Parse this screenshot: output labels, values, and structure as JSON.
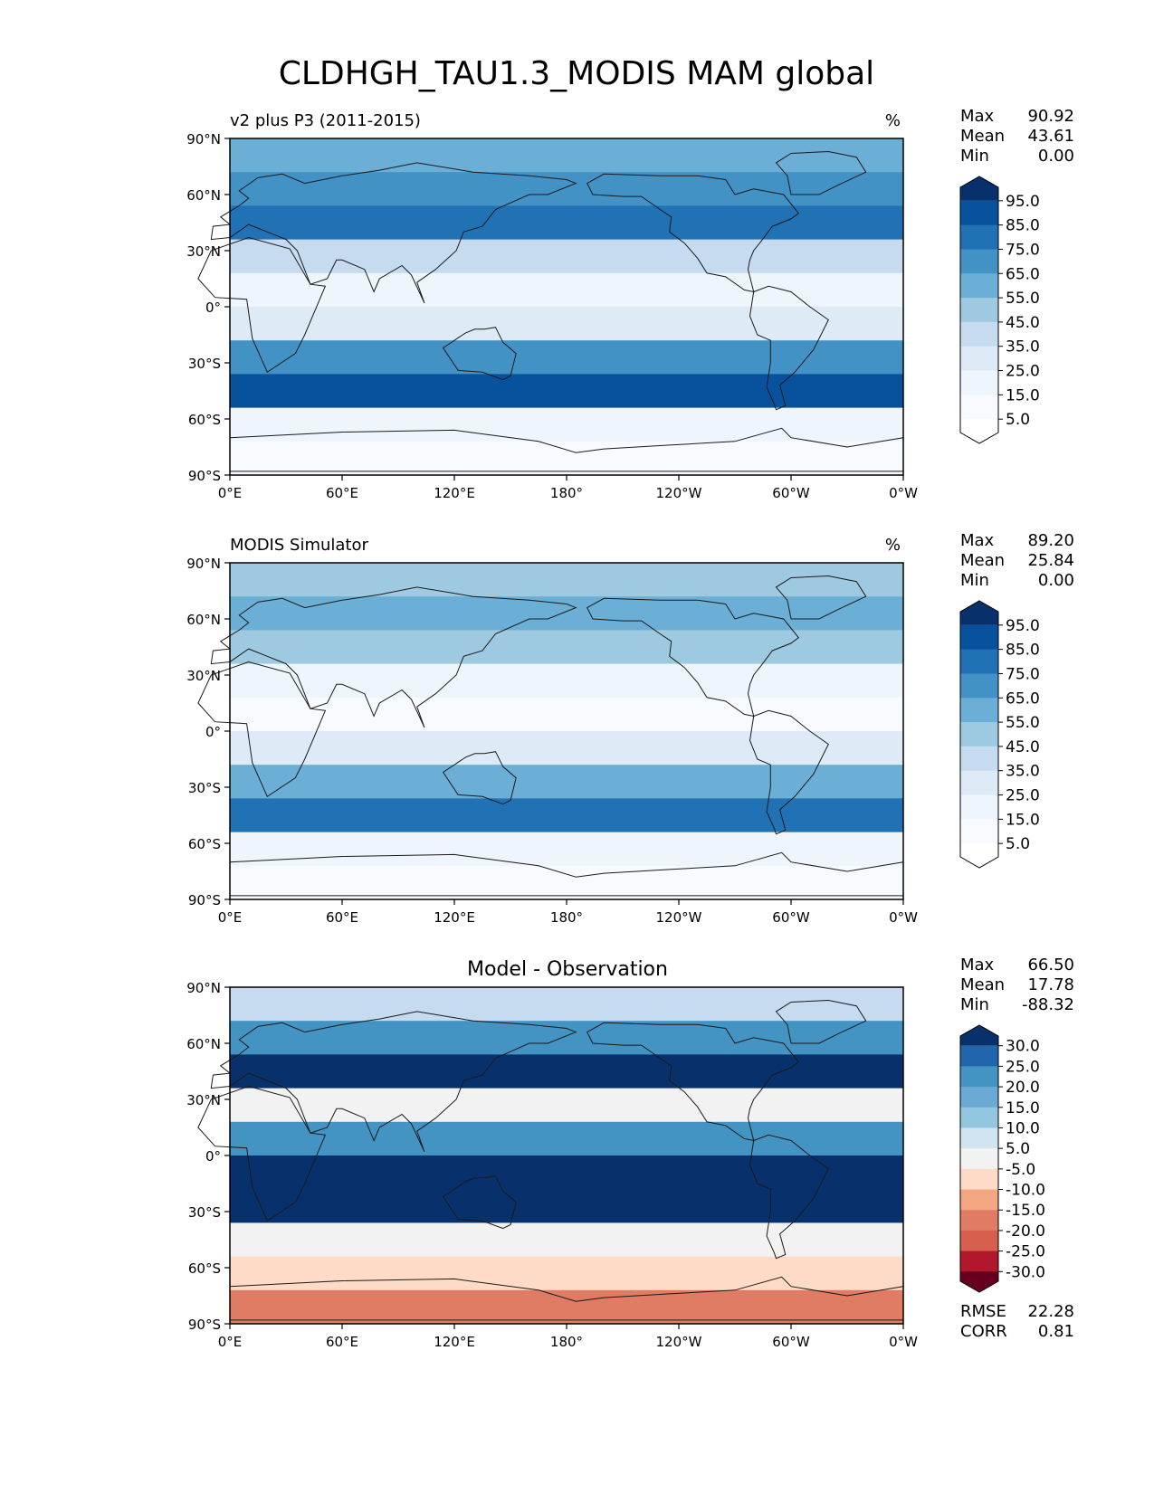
{
  "figure": {
    "title": "CLDHGH_TAU1.3_MODIS MAM global"
  },
  "panels": [
    {
      "id": "test",
      "title_left": "v2 plus P3 (2011-2015)",
      "title_center": "",
      "units": "%",
      "stats": [
        {
          "label": "Max",
          "value": "90.92"
        },
        {
          "label": "Mean",
          "value": "43.61"
        },
        {
          "label": "Min",
          "value": "0.00"
        }
      ],
      "colorbar": {
        "labels": [
          "95.0",
          "85.0",
          "75.0",
          "65.0",
          "55.0",
          "45.0",
          "35.0",
          "25.0",
          "15.0",
          "5.0"
        ],
        "colors": [
          "#08306b",
          "#08519c",
          "#2171b5",
          "#4292c6",
          "#6baed6",
          "#9ecae1",
          "#c6dbef",
          "#deebf7",
          "#eef5fc",
          "#f7fbff",
          "#ffffff"
        ]
      }
    },
    {
      "id": "reference",
      "title_left": "MODIS Simulator",
      "title_center": "",
      "units": "%",
      "stats": [
        {
          "label": "Max",
          "value": "89.20"
        },
        {
          "label": "Mean",
          "value": "25.84"
        },
        {
          "label": "Min",
          "value": "0.00"
        }
      ],
      "colorbar": {
        "labels": [
          "95.0",
          "85.0",
          "75.0",
          "65.0",
          "55.0",
          "45.0",
          "35.0",
          "25.0",
          "15.0",
          "5.0"
        ],
        "colors": [
          "#08306b",
          "#08519c",
          "#2171b5",
          "#4292c6",
          "#6baed6",
          "#9ecae1",
          "#c6dbef",
          "#deebf7",
          "#eef5fc",
          "#f7fbff",
          "#ffffff"
        ]
      }
    },
    {
      "id": "difference",
      "title_left": "",
      "title_center": "Model - Observation",
      "units": "",
      "stats": [
        {
          "label": "Max",
          "value": "66.50"
        },
        {
          "label": "Mean",
          "value": "17.78"
        },
        {
          "label": "Min",
          "value": "-88.32"
        }
      ],
      "bottom_stats": [
        {
          "label": "RMSE",
          "value": "22.28"
        },
        {
          "label": "CORR",
          "value": "0.81"
        }
      ],
      "colorbar": {
        "labels": [
          "30.0",
          "25.0",
          "20.0",
          "15.0",
          "10.0",
          "5.0",
          "-5.0",
          "-10.0",
          "-15.0",
          "-20.0",
          "-25.0",
          "-30.0"
        ],
        "colors": [
          "#08306b",
          "#2166ac",
          "#4393c3",
          "#6aa9d3",
          "#92c5de",
          "#d1e5f0",
          "#f2f2f2",
          "#fddbc7",
          "#f4a582",
          "#e07b64",
          "#d6604d",
          "#b2182b",
          "#67001f"
        ]
      }
    }
  ],
  "axes": {
    "lat_ticks": [
      "90°N",
      "60°N",
      "30°N",
      "0°",
      "30°S",
      "60°S",
      "90°S"
    ],
    "lon_ticks": [
      "0°E",
      "60°E",
      "120°E",
      "180°",
      "120°W",
      "60°W",
      "0°W"
    ]
  },
  "map_bands": {
    "test": [
      "#6baed6",
      "#4292c6",
      "#2171b5",
      "#c6dbef",
      "#eef5fc",
      "#deebf7",
      "#4292c6",
      "#08519c",
      "#eef5fc",
      "#f7fbff"
    ],
    "reference": [
      "#9ecae1",
      "#6baed6",
      "#9ecae1",
      "#eef5fc",
      "#f7fbff",
      "#deebf7",
      "#6baed6",
      "#2171b5",
      "#eef5fc",
      "#f7fbff"
    ],
    "difference": [
      "#c6dbef",
      "#4393c3",
      "#08306b",
      "#f2f2f2",
      "#4393c3",
      "#08306b",
      "#08306b",
      "#f2f2f2",
      "#fddbc7",
      "#e07b64"
    ]
  }
}
